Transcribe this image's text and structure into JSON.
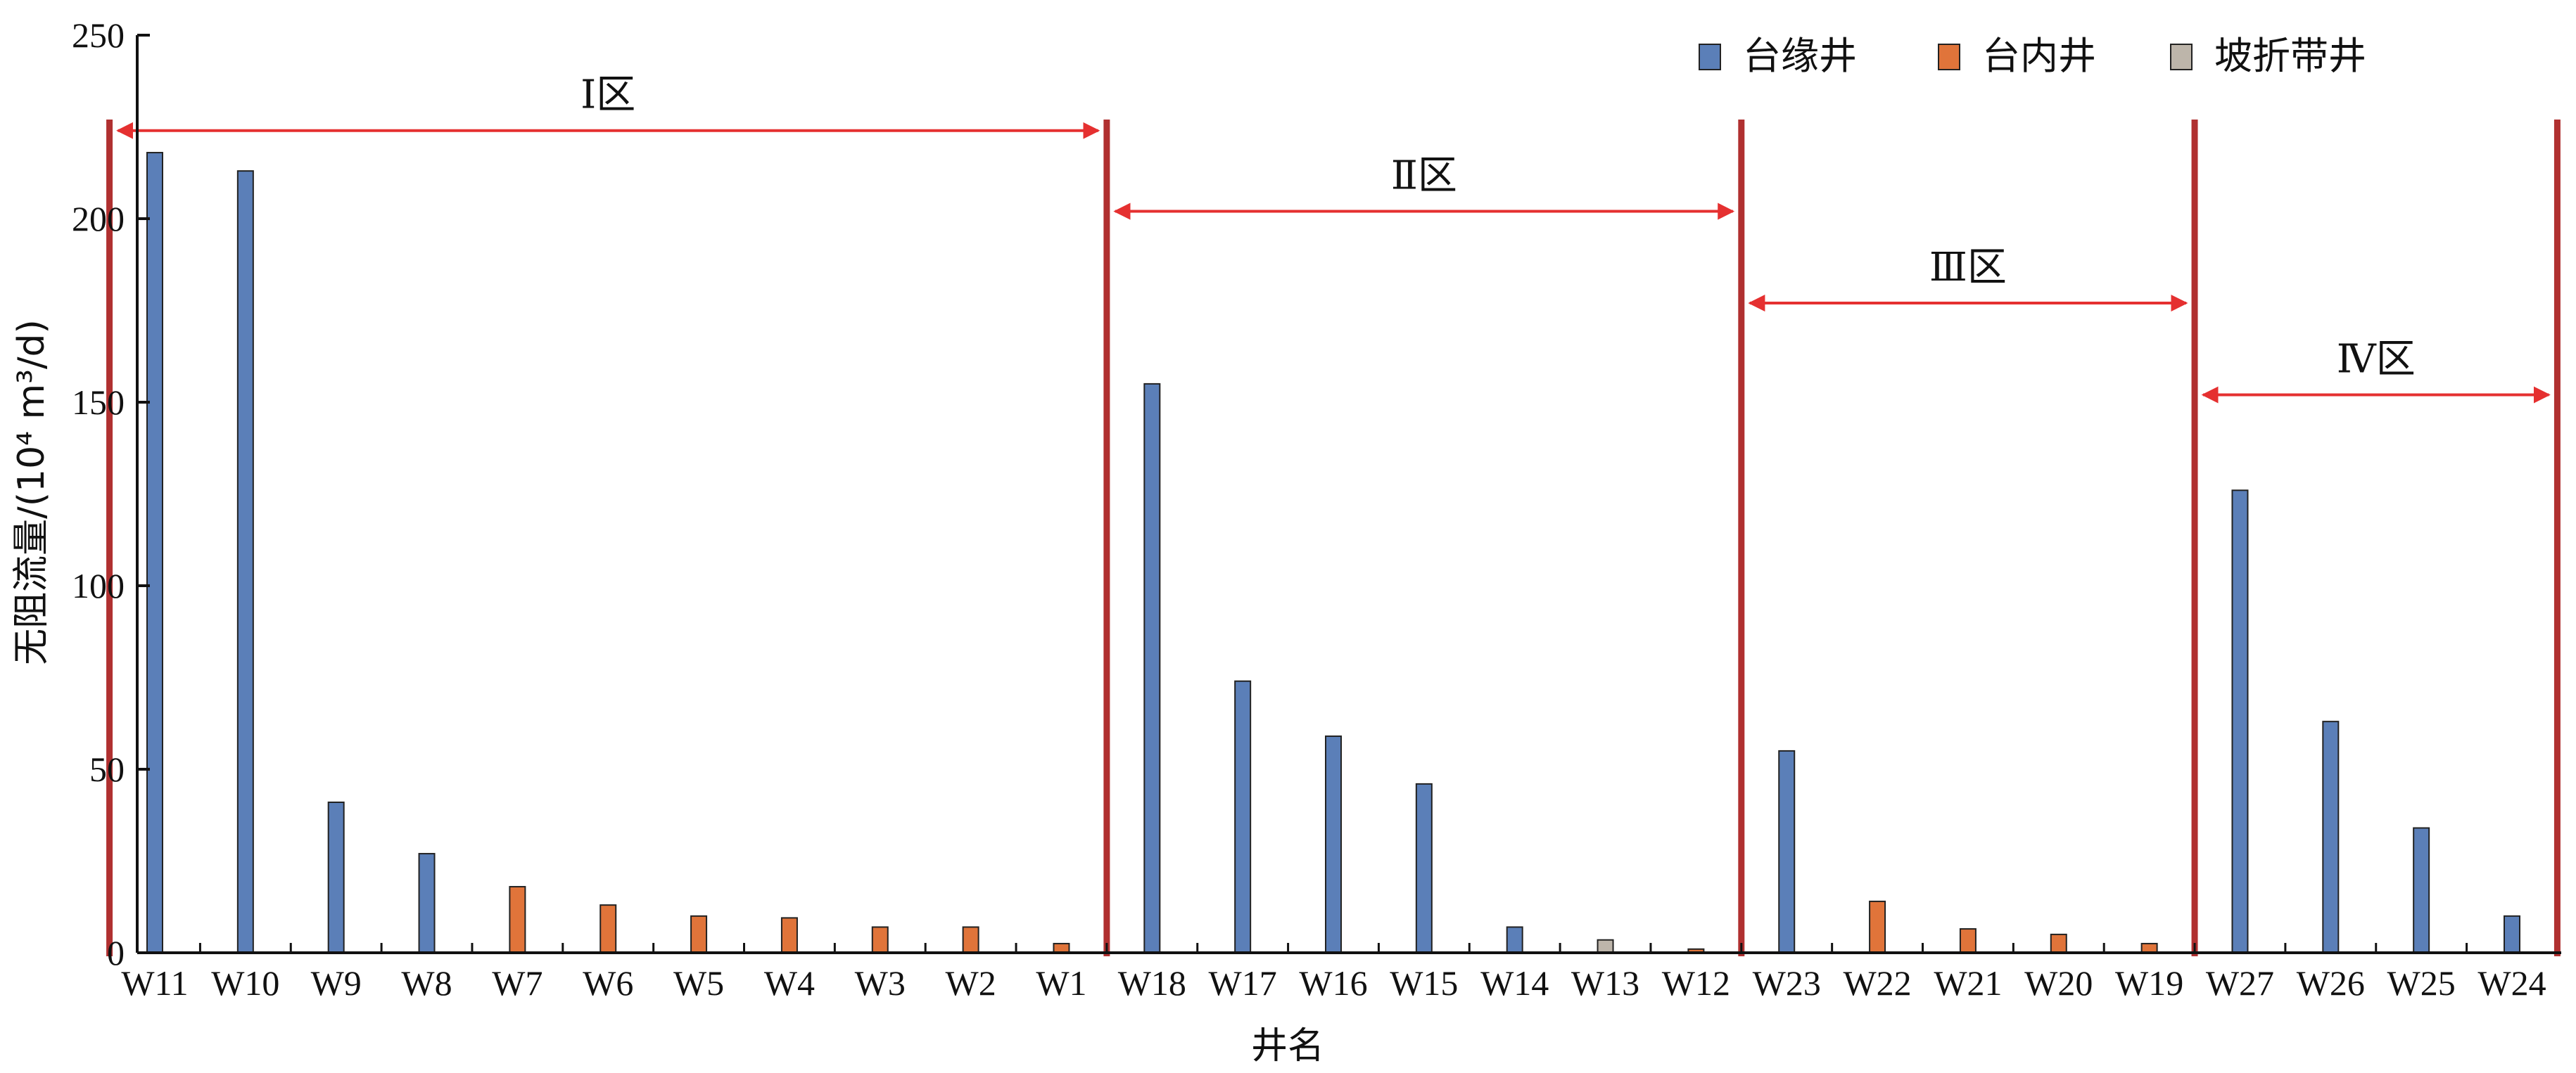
{
  "chart_data": {
    "type": "bar",
    "xlabel": "井名",
    "ylabel": "无阻流量/(10⁴ m³/d)",
    "ylim": [
      0,
      250
    ],
    "yticks": [
      "0",
      "50",
      "100",
      "150",
      "200",
      "250"
    ],
    "categories": [
      "W11",
      "W10",
      "W9",
      "W8",
      "W7",
      "W6",
      "W5",
      "W4",
      "W3",
      "W2",
      "W1",
      "W18",
      "W17",
      "W16",
      "W15",
      "W14",
      "W13",
      "W12",
      "W23",
      "W22",
      "W21",
      "W20",
      "W19",
      "W27",
      "W26",
      "W25",
      "W24"
    ],
    "series": [
      {
        "name": "台缘井",
        "color": "#5b7fb8",
        "values": [
          218,
          213,
          41,
          27,
          null,
          null,
          null,
          null,
          null,
          null,
          null,
          155,
          74,
          59,
          46,
          7,
          null,
          null,
          55,
          null,
          null,
          null,
          null,
          126,
          63,
          34,
          10
        ]
      },
      {
        "name": "台内井",
        "color": "#e0743a",
        "values": [
          null,
          null,
          null,
          null,
          18,
          13,
          10,
          9.5,
          7,
          7,
          2.5,
          null,
          null,
          null,
          null,
          null,
          null,
          1,
          null,
          14,
          6.5,
          5,
          2.5,
          null,
          null,
          null,
          null
        ]
      },
      {
        "name": "坡折带井",
        "color": "#bdb5aa",
        "values": [
          null,
          null,
          null,
          null,
          null,
          null,
          null,
          null,
          null,
          null,
          null,
          null,
          null,
          null,
          null,
          null,
          3.5,
          null,
          null,
          null,
          null,
          null,
          null,
          null,
          null,
          null,
          null
        ]
      }
    ],
    "zones": [
      {
        "label": "Ⅰ区",
        "from": 0,
        "to": 10
      },
      {
        "label": "Ⅱ区",
        "from": 11,
        "to": 17
      },
      {
        "label": "Ⅲ区",
        "from": 18,
        "to": 22
      },
      {
        "label": "Ⅳ区",
        "from": 23,
        "to": 26
      }
    ],
    "legend_position": "top-right",
    "grid": false,
    "colors": {
      "zone_boundary": "#b03030",
      "zone_arrow": "#e53030"
    }
  }
}
